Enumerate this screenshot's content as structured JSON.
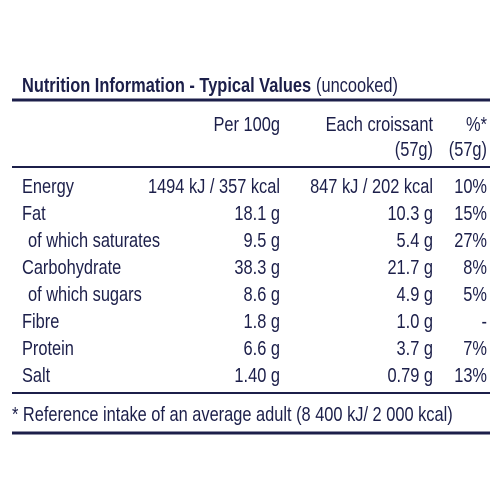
{
  "title": "Nutrition Information - Typical Values",
  "title_note": "(uncooked)",
  "columns": [
    {
      "lines": [
        "Per 100g"
      ]
    },
    {
      "lines": [
        "Each croissant",
        "(57g)"
      ]
    },
    {
      "lines": [
        "%*",
        "(57g)"
      ]
    }
  ],
  "rows": [
    {
      "label": "Energy",
      "cells": [
        "1494 kJ / 357 kcal",
        "847 kJ / 202 kcal",
        "10%"
      ]
    },
    {
      "label": "Fat",
      "cells": [
        "18.1 g",
        "10.3 g",
        "15%"
      ]
    },
    {
      "label": "of which saturates",
      "sub": true,
      "cells": [
        "9.5 g",
        "5.4 g",
        "27%"
      ]
    },
    {
      "label": "Carbohydrate",
      "cells": [
        "38.3 g",
        "21.7 g",
        "8%"
      ]
    },
    {
      "label": "of which sugars",
      "sub": true,
      "cells": [
        "8.6 g",
        "4.9 g",
        "5%"
      ]
    },
    {
      "label": "Fibre",
      "cells": [
        "1.8 g",
        "1.0 g",
        "-"
      ]
    },
    {
      "label": "Protein",
      "cells": [
        "6.6 g",
        "3.7 g",
        "7%"
      ]
    },
    {
      "label": "Salt",
      "cells": [
        "1.40 g",
        "0.79 g",
        "13%"
      ]
    }
  ],
  "footnote": "* Reference intake of an average adult (8 400 kJ/ 2 000 kcal)"
}
